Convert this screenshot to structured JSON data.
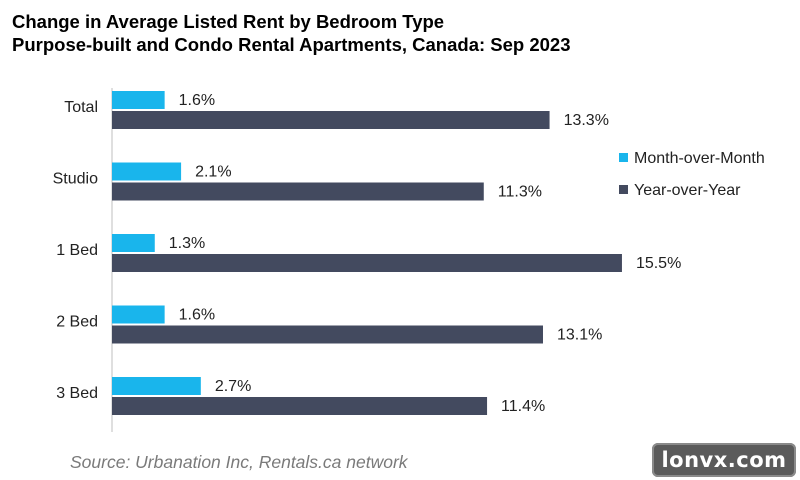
{
  "chart_data": {
    "type": "bar",
    "orientation": "horizontal",
    "title": "Change in Average Listed Rent by Bedroom Type",
    "subtitle": "Purpose-built and Condo Rental Apartments, Canada: Sep 2023",
    "categories": [
      "Total",
      "Studio",
      "1 Bed",
      "2 Bed",
      "3 Bed"
    ],
    "series": [
      {
        "name": "Month-over-Month",
        "color": "#19b5ec",
        "values": [
          1.6,
          2.1,
          1.3,
          1.6,
          2.7
        ],
        "labels": [
          "1.6%",
          "2.1%",
          "1.3%",
          "1.6%",
          "2.7%"
        ]
      },
      {
        "name": "Year-over-Year",
        "color": "#434a5f",
        "values": [
          13.3,
          11.3,
          15.5,
          13.1,
          11.4
        ],
        "labels": [
          "13.3%",
          "11.3%",
          "15.5%",
          "13.1%",
          "11.4%"
        ]
      }
    ],
    "xlim": [
      0,
      20
    ],
    "grid": false,
    "legend_position": "right"
  },
  "source": "Source: Urbanation Inc, Rentals.ca network",
  "watermark": "lonvx.com"
}
